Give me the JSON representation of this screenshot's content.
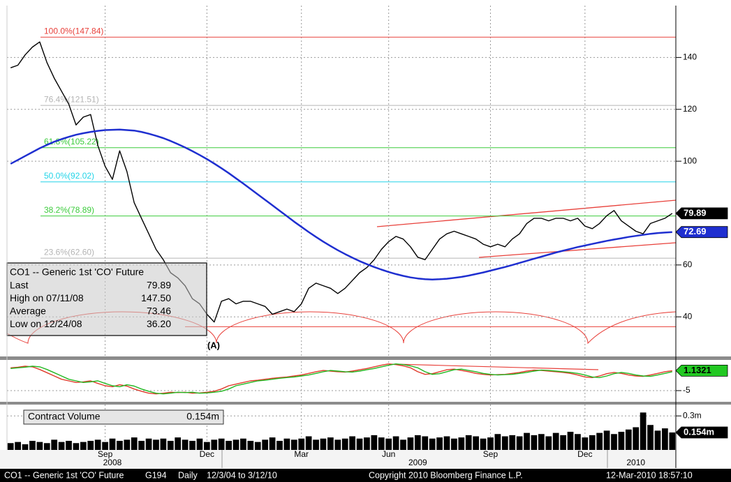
{
  "chart_data": {
    "type": "line",
    "categories": [
      null,
      null,
      null,
      null,
      null,
      null,
      null,
      null,
      null,
      null,
      null,
      null,
      null,
      "Sep",
      null,
      null,
      null,
      null,
      null,
      null,
      null,
      null,
      null,
      null,
      null,
      null,
      null,
      "Dec",
      null,
      null,
      null,
      null,
      null,
      null,
      null,
      null,
      null,
      null,
      null,
      null,
      "Mar",
      null,
      null,
      null,
      null,
      null,
      null,
      null,
      null,
      null,
      null,
      null,
      "Jun",
      null,
      null,
      null,
      null,
      null,
      null,
      null,
      null,
      null,
      null,
      null,
      null,
      null,
      "Sep",
      null,
      null,
      null,
      null,
      null,
      null,
      null,
      null,
      null,
      null,
      null,
      null,
      "Dec",
      null,
      null,
      null,
      null,
      null,
      null,
      null,
      null,
      null,
      null,
      null,
      null
    ],
    "categories2": [
      null,
      null,
      null,
      null,
      null,
      null,
      null,
      null,
      null,
      null,
      null,
      null,
      null,
      null,
      "2008",
      null,
      null,
      null,
      null,
      null,
      null,
      null,
      null,
      null,
      null,
      null,
      null,
      null,
      null,
      null,
      null,
      null,
      null,
      null,
      null,
      null,
      null,
      null,
      null,
      null,
      null,
      null,
      null,
      null,
      null,
      null,
      null,
      null,
      null,
      null,
      null,
      null,
      null,
      null,
      null,
      null,
      "2009",
      null,
      null,
      null,
      null,
      null,
      null,
      null,
      null,
      null,
      null,
      null,
      null,
      null,
      null,
      null,
      null,
      null,
      null,
      null,
      null,
      null,
      null,
      null,
      null,
      null,
      null,
      null,
      null,
      null,
      "2010",
      null,
      null,
      null,
      null
    ],
    "ylim": [
      25,
      160
    ],
    "yticks": [
      40,
      60,
      100,
      120,
      140
    ],
    "grid": true,
    "series": [
      {
        "color": "#000000",
        "values": [
          136,
          137,
          141,
          144,
          146,
          138,
          132,
          127,
          122,
          114,
          117,
          118,
          106,
          98,
          93,
          104,
          96,
          84,
          78,
          72,
          66,
          62,
          57,
          55,
          52,
          47,
          45,
          41,
          38,
          46,
          47,
          45,
          46,
          46,
          45,
          44,
          41,
          42,
          43,
          42,
          45,
          51,
          53,
          52,
          51,
          49,
          51,
          54,
          57,
          59,
          62,
          66,
          69,
          71,
          70,
          67,
          63,
          62,
          66,
          70,
          72,
          73,
          72,
          71,
          70,
          68,
          67,
          68,
          67,
          70,
          72,
          76,
          78,
          78,
          77,
          78,
          78,
          77,
          78,
          75,
          74,
          76,
          79,
          81,
          77,
          75,
          73,
          72,
          76,
          77,
          78,
          79.89
        ]
      },
      {
        "color": "#1f2fd0",
        "values": [
          99,
          100.5,
          102,
          103.5,
          105,
          106.3,
          107.5,
          108.5,
          109.4,
          110.2,
          110.8,
          111.3,
          111.7,
          112,
          112.1,
          112.2,
          112,
          111.8,
          111.3,
          110.6,
          109.8,
          108.9,
          107.8,
          106.6,
          105.3,
          103.9,
          102.4,
          100.8,
          99.1,
          97.3,
          95.4,
          93.4,
          91.4,
          89.3,
          87.2,
          85.1,
          83,
          80.9,
          78.8,
          76.7,
          74.7,
          72.7,
          70.8,
          69,
          67.3,
          65.7,
          64.2,
          62.8,
          61.5,
          60.3,
          59.2,
          58.2,
          57.3,
          56.5,
          55.8,
          55.2,
          54.8,
          54.5,
          54.4,
          54.5,
          54.7,
          55,
          55.4,
          55.9,
          56.5,
          57.1,
          57.8,
          58.5,
          59.2,
          60,
          60.8,
          61.6,
          62.4,
          63.2,
          64,
          64.8,
          65.5,
          66.2,
          66.9,
          67.5,
          68.1,
          68.7,
          69.3,
          69.8,
          70.3,
          70.8,
          71.2,
          71.6,
          72,
          72.3,
          72.5,
          72.69
        ]
      }
    ],
    "levels": [
      {
        "label": "100.0%(147.84)",
        "value": 147.84,
        "color": "#e8403a"
      },
      {
        "label": "76.4%(121.51)",
        "value": 121.51,
        "color": "#b4b4b4"
      },
      {
        "label": "61.8%(105.22)",
        "value": 105.22,
        "color": "#3ccc3c"
      },
      {
        "label": "50.0%(92.02)",
        "value": 92.02,
        "color": "#22d4e8"
      },
      {
        "label": "38.2%(78.89)",
        "value": 78.89,
        "color": "#3ccc3c"
      },
      {
        "label": "23.6%(62.60)",
        "value": 62.6,
        "color": "#b4b4b4"
      },
      {
        "value": 36.2,
        "color": "#e8403a"
      }
    ],
    "annotation": "(A)",
    "info_box": {
      "title": "CO1 -- Generic 1st 'CO' Future",
      "rows": [
        [
          "Last",
          "79.89"
        ],
        [
          "High on 07/11/08",
          "147.50"
        ],
        [
          "Average",
          "73.46"
        ],
        [
          "Low on 12/24/08",
          "36.20"
        ]
      ]
    },
    "oscillator": {
      "type": "line",
      "ylim": [
        -8,
        4
      ],
      "yticks": [
        -5
      ],
      "series": [
        {
          "color": "#e03a2a",
          "values": [
            2,
            2.2,
            2.5,
            2.3,
            1.5,
            0.5,
            -0.5,
            -1.5,
            -2,
            -2.5,
            -2.3,
            -2,
            -2.8,
            -3.5,
            -3.8,
            -3.2,
            -3.6,
            -4.5,
            -5.2,
            -5.8,
            -6,
            -5.8,
            -5.5,
            -5.6,
            -5.5,
            -5.8,
            -5.7,
            -5.5,
            -5.2,
            -4.5,
            -3.5,
            -3,
            -2.5,
            -2,
            -1.8,
            -1.5,
            -1.2,
            -1,
            -0.8,
            -0.5,
            -0.2,
            0.3,
            0.8,
            1.2,
            1,
            0.8,
            0.7,
            1,
            1.4,
            1.8,
            2.3,
            2.8,
            3.2,
            3,
            2.6,
            2,
            0.8,
            0,
            0.2,
            0.8,
            1.4,
            1.6,
            1.2,
            0.8,
            0.3,
            0,
            -0.2,
            -0.1,
            0,
            0.3,
            0.6,
            1,
            1.3,
            1.2,
            1,
            0.8,
            0.6,
            0.3,
            -0.2,
            -0.8,
            -1,
            -0.5,
            0.2,
            0.6,
            0.3,
            -0.2,
            -0.5,
            -0.6,
            -0.2,
            0.3,
            0.8,
            1.1321
          ]
        },
        {
          "color": "#22b822",
          "values": [
            1.8,
            2,
            2.2,
            2.5,
            2.3,
            1.5,
            0.5,
            -0.5,
            -1.5,
            -2,
            -2.5,
            -2.3,
            -2,
            -2.8,
            -3.5,
            -3.8,
            -3.2,
            -3.6,
            -4.5,
            -5.2,
            -5.8,
            -6,
            -5.8,
            -5.5,
            -5.6,
            -5.5,
            -5.8,
            -5.7,
            -5.5,
            -5.2,
            -4.5,
            -3.5,
            -3,
            -2.5,
            -2,
            -1.8,
            -1.5,
            -1.2,
            -1,
            -0.8,
            -0.5,
            -0.2,
            0.3,
            0.8,
            1.2,
            1,
            0.8,
            0.7,
            1,
            1.4,
            1.8,
            2.3,
            2.8,
            3.2,
            3,
            2.6,
            2,
            0.8,
            0,
            0.2,
            0.8,
            1.4,
            1.6,
            1.2,
            0.8,
            0.3,
            0,
            -0.2,
            -0.1,
            0,
            0.3,
            0.6,
            1,
            1.3,
            1.2,
            1,
            0.8,
            0.6,
            0.3,
            -0.2,
            -0.8,
            -1,
            -0.5,
            0.2,
            0.6,
            0.3,
            -0.2,
            -0.5,
            -0.6,
            -0.2,
            0.3,
            0.8
          ]
        }
      ]
    },
    "volume": {
      "type": "bar",
      "title": "Contract Volume",
      "ylim": [
        0,
        0.4
      ],
      "yticks": [
        {
          "value": 0.3,
          "label": "0.3m"
        }
      ],
      "color": "#000000",
      "values": [
        0.06,
        0.07,
        0.05,
        0.08,
        0.07,
        0.06,
        0.09,
        0.07,
        0.08,
        0.06,
        0.07,
        0.08,
        0.09,
        0.07,
        0.1,
        0.08,
        0.09,
        0.11,
        0.08,
        0.1,
        0.09,
        0.1,
        0.08,
        0.11,
        0.09,
        0.08,
        0.1,
        0.07,
        0.09,
        0.1,
        0.08,
        0.09,
        0.1,
        0.08,
        0.07,
        0.09,
        0.11,
        0.08,
        0.1,
        0.09,
        0.1,
        0.12,
        0.09,
        0.1,
        0.11,
        0.09,
        0.1,
        0.12,
        0.1,
        0.11,
        0.13,
        0.11,
        0.1,
        0.12,
        0.09,
        0.11,
        0.13,
        0.12,
        0.1,
        0.11,
        0.12,
        0.1,
        0.11,
        0.13,
        0.12,
        0.1,
        0.11,
        0.14,
        0.12,
        0.13,
        0.12,
        0.15,
        0.13,
        0.14,
        0.12,
        0.15,
        0.13,
        0.16,
        0.14,
        0.11,
        0.13,
        0.15,
        0.17,
        0.14,
        0.16,
        0.18,
        0.2,
        0.33,
        0.22,
        0.17,
        0.19,
        0.154
      ],
      "value_labels": {
        "91": "0.154m"
      }
    }
  },
  "footer": [
    "CO1 -- Generic 1st 'CO' Future",
    "G194",
    "Daily",
    "12/3/04 to 3/12/10",
    "Copyright 2010 Bloomberg Finance L.P.",
    "12-Mar-2010 18:57:10"
  ]
}
